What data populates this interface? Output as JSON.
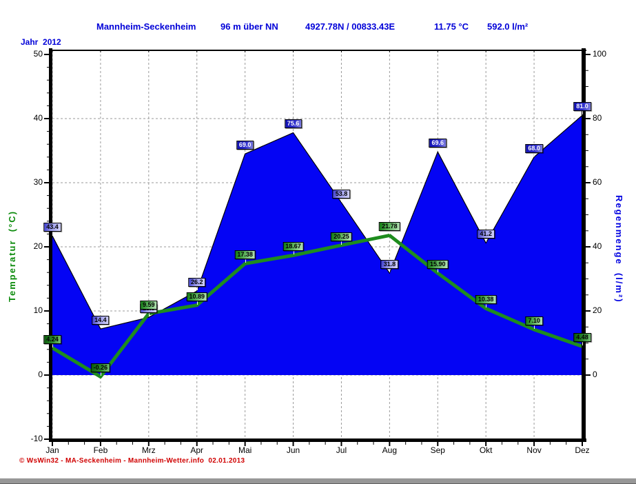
{
  "header": {
    "station": "Mannheim-Seckenheim",
    "altitude": "96 m über NN",
    "coordinates": "4927.78N / 00833.43E",
    "mean_temperature": "11.75 °C",
    "total_rainfall": "592.0 l/m²"
  },
  "year_label": "Jahr  2012",
  "chart_data": {
    "type": "area",
    "title": "Mannheim-Seckenheim Jahr 2012",
    "categories": [
      "Jan",
      "Feb",
      "Mrz",
      "Apr",
      "Mai",
      "Jun",
      "Jul",
      "Aug",
      "Sep",
      "Okt",
      "Nov",
      "Dez"
    ],
    "series": [
      {
        "name": "Regenmenge",
        "chart_type": "area",
        "axis": "right",
        "unit": "l/m²",
        "color": "#0404f4",
        "values": [
          43.4,
          14.4,
          18.0,
          26.2,
          69.0,
          75.6,
          53.8,
          31.8,
          69.6,
          41.2,
          68.0,
          81.0
        ],
        "labels": [
          "43.4",
          "14.4",
          "18.0",
          "26.2",
          "69.0",
          "75.6",
          "53.8",
          "31.8",
          "69.6",
          "41.2",
          "68.0",
          "81.0"
        ]
      },
      {
        "name": "Temperatur",
        "chart_type": "line",
        "axis": "left",
        "unit": "°C",
        "color": "#1e8c1e",
        "values": [
          4.24,
          -0.26,
          9.59,
          10.89,
          17.38,
          18.67,
          20.25,
          21.78,
          15.9,
          10.38,
          7.1,
          4.48
        ],
        "labels": [
          "4.24",
          "-0.26",
          "9.59",
          "10.89",
          "17.38",
          "18.67",
          "20.25",
          "21.78",
          "15.90",
          "10.38",
          "7.10",
          "4.48"
        ]
      }
    ],
    "left_axis": {
      "title": "Temperatur  (°C)",
      "min": -10,
      "max": 50,
      "tick_step": 10,
      "ticks": [
        "50",
        "40",
        "30",
        "20",
        "10",
        "0",
        "-10"
      ],
      "color": "#0a8a0a"
    },
    "right_axis": {
      "title": "Regenmenge  (l/m²)",
      "min": 0,
      "max": 100,
      "tick_step": 20,
      "ticks": [
        "100",
        "80",
        "60",
        "40",
        "20",
        "0"
      ],
      "color": "#0000e0"
    },
    "grid": "dashed gray",
    "legend_position": "none"
  },
  "footer": {
    "credit": "© WsWin32 - MA-Seckenheim - Mannheim-Wetter.info  02.01.2013"
  }
}
